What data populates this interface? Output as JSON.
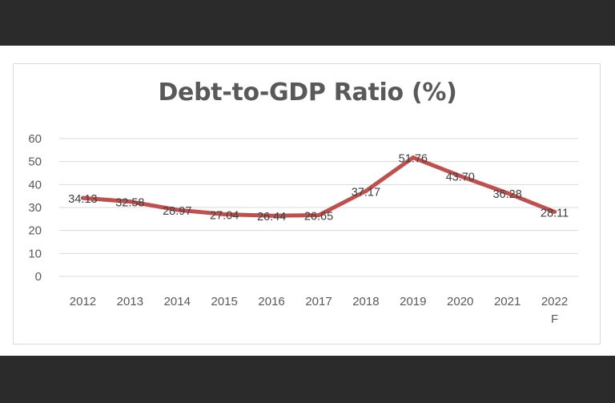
{
  "chart_data": {
    "type": "line",
    "title": "Debt-to-GDP Ratio (%)",
    "categories": [
      "2012",
      "2013",
      "2014",
      "2015",
      "2016",
      "2017",
      "2018",
      "2019",
      "2020",
      "2021",
      "2022\nF"
    ],
    "series": [
      {
        "values": [
          34.13,
          32.58,
          28.97,
          27.04,
          26.44,
          26.65,
          37.17,
          51.76,
          43.7,
          36.28,
          28.11
        ],
        "labels": [
          "34.13",
          "32.58",
          "28.97",
          "27.04",
          "26.44",
          "26.65",
          "37.17",
          "51.76",
          "43.70",
          "36.28",
          "28.11"
        ]
      }
    ],
    "yticks": [
      "0",
      "10",
      "20",
      "30",
      "40",
      "50",
      "60"
    ],
    "ylim": [
      0,
      60
    ],
    "grid": true,
    "legend": "none",
    "line_color": "#c0504d"
  }
}
